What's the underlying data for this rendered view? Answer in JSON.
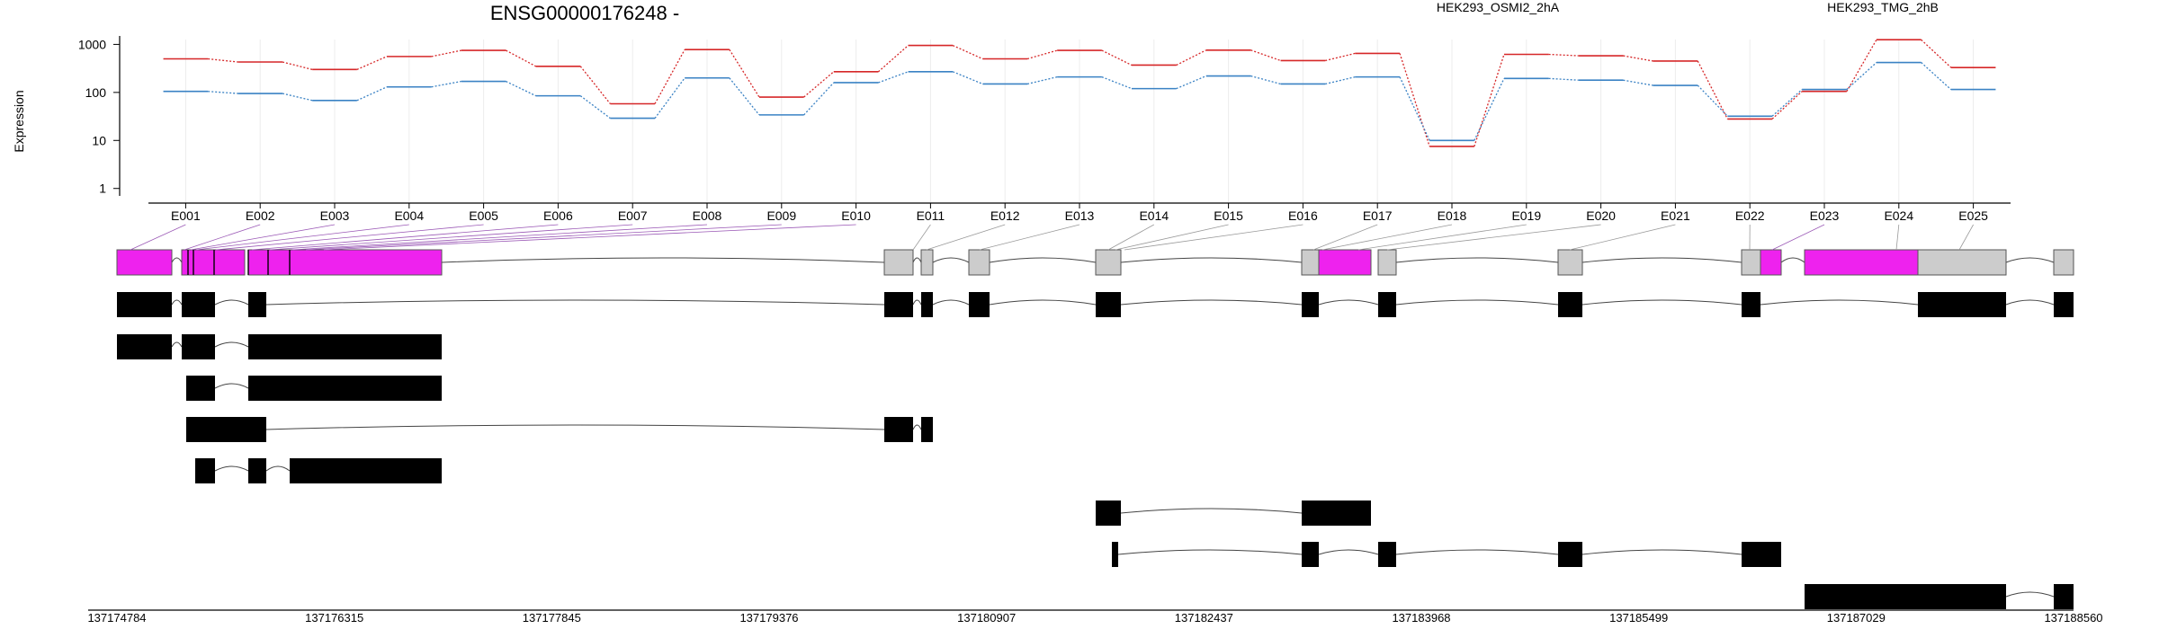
{
  "chart_data": {
    "type": "line",
    "title": "ENSG00000176248 -",
    "ylabel": "Expression",
    "yscale": "log",
    "ylim": [
      0.7,
      1500
    ],
    "y_ticks": [
      1,
      10,
      100,
      1000
    ],
    "y_tick_labels": [
      "1",
      "10",
      "100",
      "1000"
    ],
    "categories": [
      "E001",
      "E002",
      "E003",
      "E004",
      "E005",
      "E006",
      "E007",
      "E008",
      "E009",
      "E010",
      "E011",
      "E012",
      "E013",
      "E014",
      "E015",
      "E016",
      "E017",
      "E018",
      "E019",
      "E020",
      "E021",
      "E022",
      "E023",
      "E024",
      "E025"
    ],
    "series": [
      {
        "name": "HEK293_OSMI2_2hA",
        "color": "#d62728",
        "values": [
          500,
          430,
          300,
          560,
          750,
          350,
          58,
          780,
          80,
          270,
          950,
          500,
          750,
          370,
          760,
          460,
          650,
          7.5,
          620,
          580,
          450,
          28,
          105,
          1250,
          330
        ]
      },
      {
        "name": "HEK293_TMG_2hB",
        "color": "#3a82c4",
        "values": [
          105,
          95,
          68,
          130,
          170,
          85,
          29,
          200,
          34,
          160,
          270,
          150,
          210,
          120,
          220,
          150,
          210,
          10,
          195,
          180,
          140,
          32,
          115,
          420,
          115
        ]
      }
    ],
    "genomic_axis": {
      "tick_labels": [
        "137174784",
        "137176315",
        "137177845",
        "137179376",
        "137180907",
        "137182437",
        "137183968",
        "137185499",
        "137187029",
        "137188560"
      ]
    },
    "colors": {
      "highlight": "#ee22ee",
      "exon_gray": "#cccccc",
      "transcript": "#000000",
      "connector": "#9b59b6"
    }
  }
}
